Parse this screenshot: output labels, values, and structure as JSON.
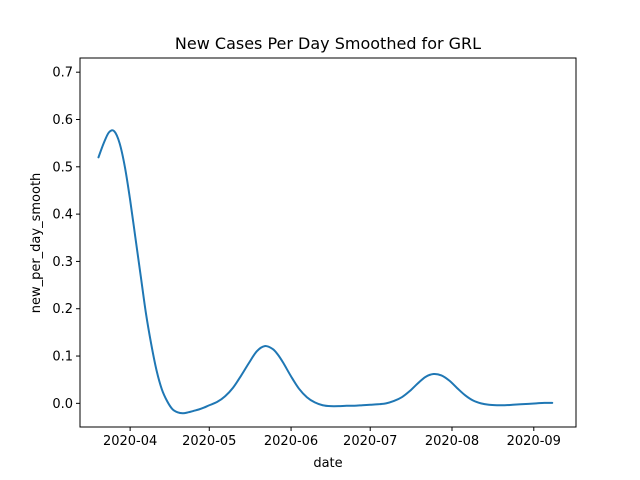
{
  "chart_data": {
    "type": "line",
    "title": "New Cases Per Day Smoothed for GRL",
    "xlabel": "date",
    "ylabel": "new_per_day_smooth",
    "xlim": [
      "2020-03-13",
      "2020-09-17"
    ],
    "ylim": [
      -0.05,
      0.73
    ],
    "grid": false,
    "x_ticks": [
      "2020-04-01",
      "2020-05-01",
      "2020-06-01",
      "2020-07-01",
      "2020-08-01",
      "2020-09-01"
    ],
    "x_tick_labels": [
      "2020-04",
      "2020-05",
      "2020-06",
      "2020-07",
      "2020-08",
      "2020-09"
    ],
    "y_ticks": [
      0.0,
      0.1,
      0.2,
      0.3,
      0.4,
      0.5,
      0.6,
      0.7
    ],
    "y_tick_labels": [
      "0.0",
      "0.1",
      "0.2",
      "0.3",
      "0.4",
      "0.5",
      "0.6",
      "0.7"
    ],
    "series": [
      {
        "color": "#1f77b4",
        "x": [
          "2020-03-20",
          "2020-03-22",
          "2020-03-24",
          "2020-03-26",
          "2020-03-28",
          "2020-03-30",
          "2020-04-01",
          "2020-04-03",
          "2020-04-05",
          "2020-04-07",
          "2020-04-09",
          "2020-04-11",
          "2020-04-13",
          "2020-04-15",
          "2020-04-17",
          "2020-04-19",
          "2020-04-21",
          "2020-04-23",
          "2020-04-25",
          "2020-04-27",
          "2020-04-29",
          "2020-05-01",
          "2020-05-04",
          "2020-05-07",
          "2020-05-10",
          "2020-05-13",
          "2020-05-16",
          "2020-05-19",
          "2020-05-22",
          "2020-05-25",
          "2020-05-27",
          "2020-05-29",
          "2020-06-01",
          "2020-06-04",
          "2020-06-07",
          "2020-06-10",
          "2020-06-13",
          "2020-06-16",
          "2020-06-19",
          "2020-06-22",
          "2020-06-25",
          "2020-06-28",
          "2020-07-01",
          "2020-07-04",
          "2020-07-07",
          "2020-07-10",
          "2020-07-13",
          "2020-07-16",
          "2020-07-19",
          "2020-07-22",
          "2020-07-25",
          "2020-07-28",
          "2020-07-31",
          "2020-08-03",
          "2020-08-06",
          "2020-08-09",
          "2020-08-12",
          "2020-08-15",
          "2020-08-18",
          "2020-08-21",
          "2020-08-24",
          "2020-08-27",
          "2020-08-30",
          "2020-09-02",
          "2020-09-05",
          "2020-09-08"
        ],
        "y": [
          0.52,
          0.55,
          0.573,
          0.575,
          0.55,
          0.5,
          0.43,
          0.35,
          0.27,
          0.19,
          0.125,
          0.07,
          0.03,
          0.005,
          -0.012,
          -0.019,
          -0.021,
          -0.019,
          -0.016,
          -0.013,
          -0.009,
          -0.004,
          0.003,
          0.015,
          0.033,
          0.058,
          0.085,
          0.11,
          0.121,
          0.115,
          0.103,
          0.086,
          0.057,
          0.031,
          0.013,
          0.002,
          -0.004,
          -0.006,
          -0.006,
          -0.005,
          -0.005,
          -0.004,
          -0.003,
          -0.002,
          0.0,
          0.005,
          0.013,
          0.026,
          0.042,
          0.056,
          0.062,
          0.059,
          0.048,
          0.032,
          0.017,
          0.006,
          0.0,
          -0.003,
          -0.004,
          -0.004,
          -0.003,
          -0.002,
          -0.001,
          0.0,
          0.001,
          0.001
        ]
      }
    ]
  }
}
